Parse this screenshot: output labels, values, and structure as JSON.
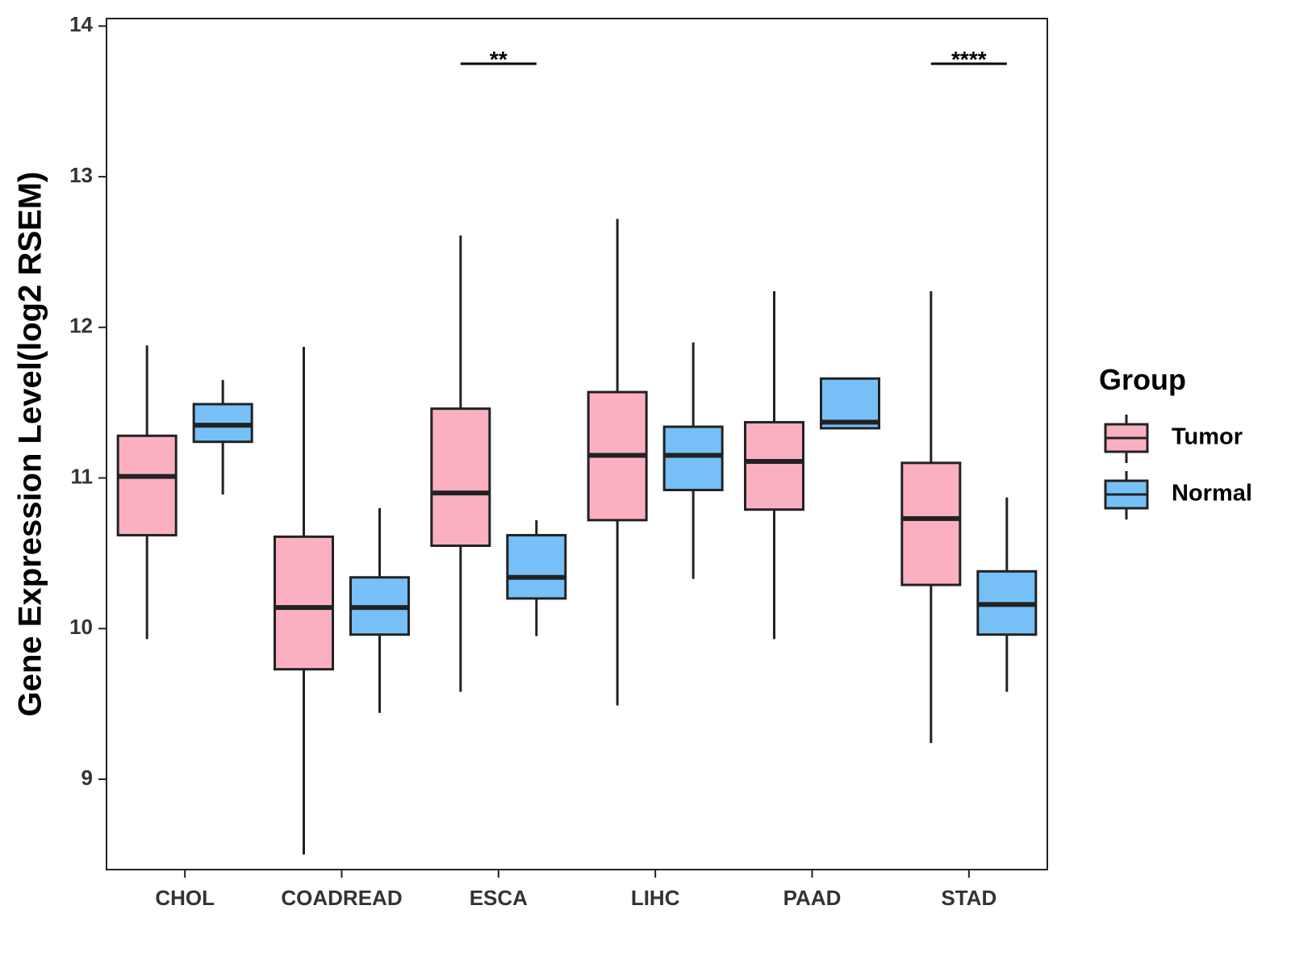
{
  "chart_data": {
    "type": "boxplot",
    "title": "",
    "xlabel": "",
    "ylabel": "Gene Expression Level(log2 RSEM)",
    "ylim": [
      8.4,
      14.05
    ],
    "yticks": [
      9,
      10,
      11,
      12,
      13,
      14
    ],
    "categories": [
      "CHOL",
      "COADREAD",
      "ESCA",
      "LIHC",
      "PAAD",
      "STAD"
    ],
    "grid": false,
    "legend": {
      "title": "Group",
      "position": "right",
      "entries": [
        {
          "name": "Tumor",
          "color": "#FBB0C2"
        },
        {
          "name": "Normal",
          "color": "#76C0F7"
        }
      ]
    },
    "series": [
      {
        "name": "Tumor",
        "color": "#FBB0C2",
        "boxes": [
          {
            "min": 9.93,
            "q1": 10.62,
            "median": 11.01,
            "q3": 11.28,
            "max": 11.88
          },
          {
            "min": 8.5,
            "q1": 9.73,
            "median": 10.14,
            "q3": 10.61,
            "max": 11.87
          },
          {
            "min": 9.58,
            "q1": 10.55,
            "median": 10.9,
            "q3": 11.46,
            "max": 12.61
          },
          {
            "min": 9.49,
            "q1": 10.72,
            "median": 11.15,
            "q3": 11.57,
            "max": 12.72
          },
          {
            "min": 9.93,
            "q1": 10.79,
            "median": 11.11,
            "q3": 11.37,
            "max": 12.24
          },
          {
            "min": 9.24,
            "q1": 10.29,
            "median": 10.73,
            "q3": 11.1,
            "max": 12.24
          }
        ]
      },
      {
        "name": "Normal",
        "color": "#76C0F7",
        "boxes": [
          {
            "min": 10.89,
            "q1": 11.24,
            "median": 11.35,
            "q3": 11.49,
            "max": 11.65
          },
          {
            "min": 9.44,
            "q1": 9.96,
            "median": 10.14,
            "q3": 10.34,
            "max": 10.8
          },
          {
            "min": 9.95,
            "q1": 10.2,
            "median": 10.34,
            "q3": 10.62,
            "max": 10.72
          },
          {
            "min": 10.33,
            "q1": 10.92,
            "median": 11.15,
            "q3": 11.34,
            "max": 11.9
          },
          {
            "min": 11.33,
            "q1": 11.33,
            "median": 11.37,
            "q3": 11.66,
            "max": 11.66
          },
          {
            "min": 9.58,
            "q1": 9.96,
            "median": 10.16,
            "q3": 10.38,
            "max": 10.87
          }
        ]
      }
    ],
    "annotations": [
      {
        "category": "ESCA",
        "label": "**",
        "y": 13.75
      },
      {
        "category": "STAD",
        "label": "****",
        "y": 13.75
      }
    ]
  }
}
